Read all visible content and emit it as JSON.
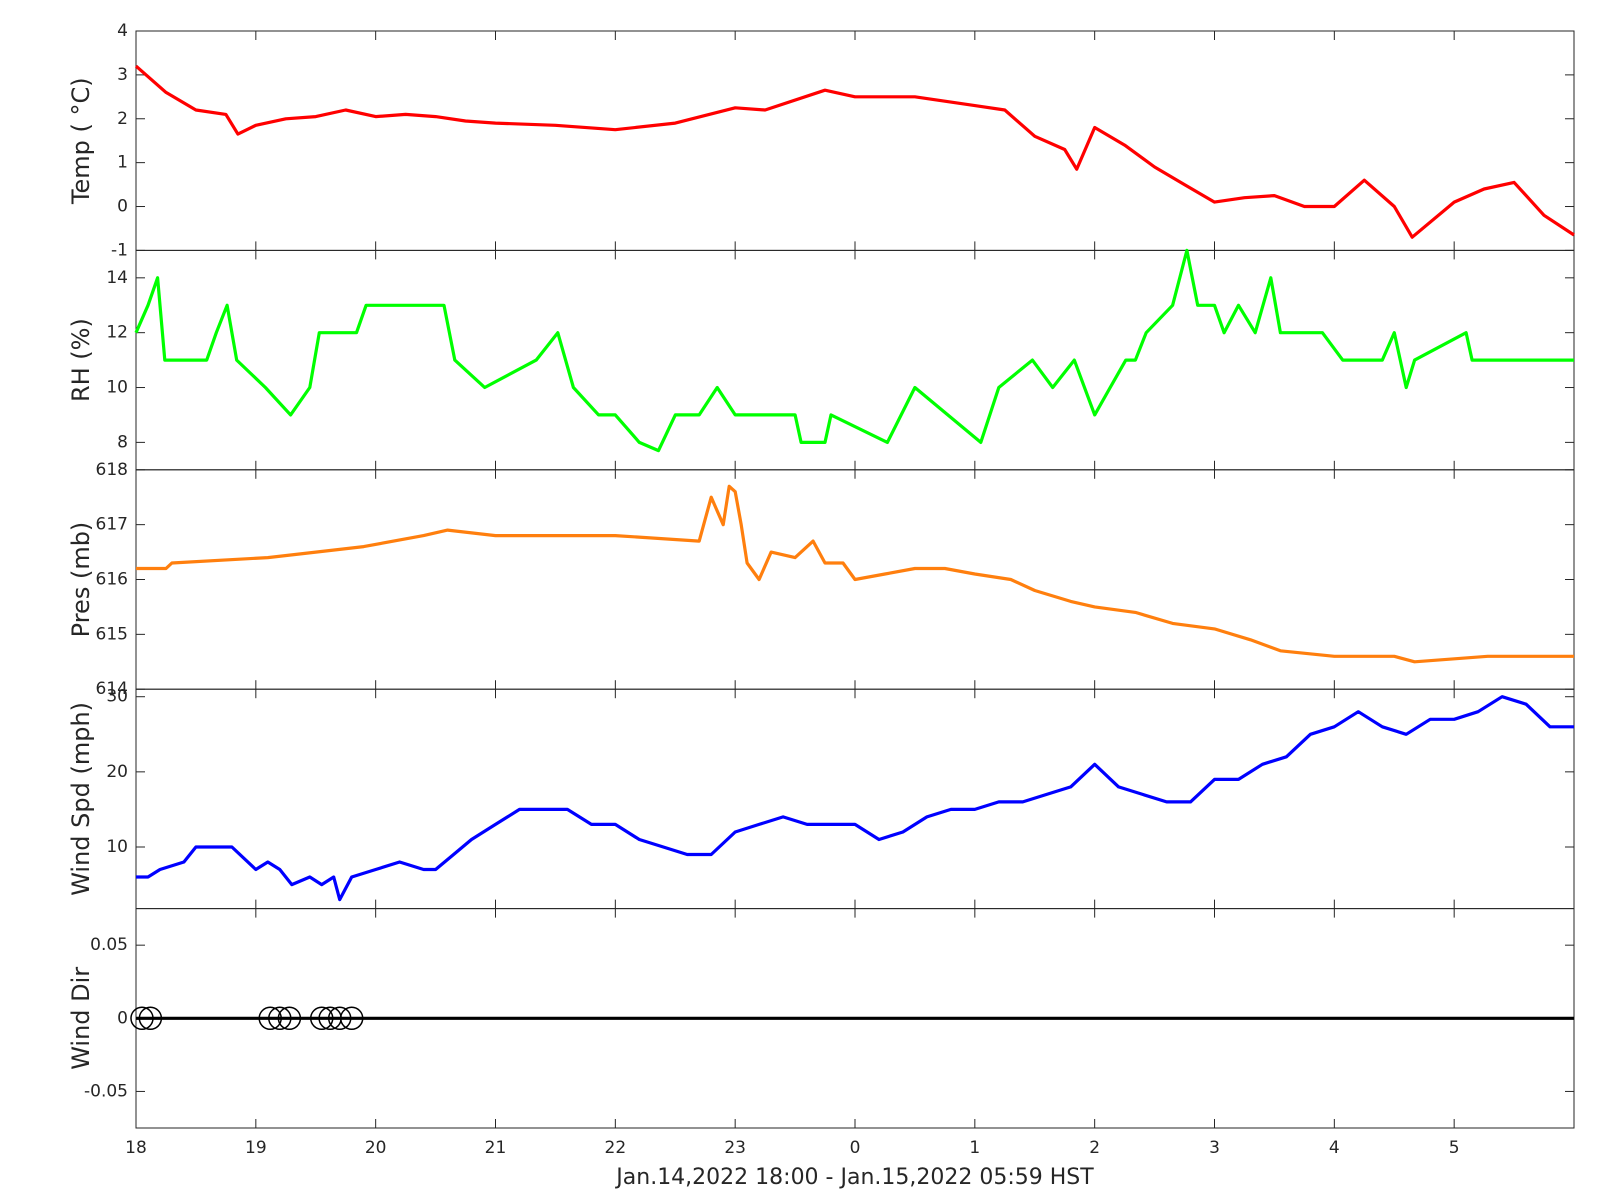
{
  "chart_data": [
    {
      "type": "line",
      "ylabel": "Temp ( °C)",
      "color": "#ff0000",
      "ylim": [
        -1,
        4
      ],
      "yticks": [
        -1,
        0,
        1,
        2,
        3,
        4
      ],
      "x": [
        0,
        0.25,
        0.5,
        0.75,
        0.85,
        1,
        1.25,
        1.5,
        1.75,
        2,
        2.25,
        2.5,
        2.75,
        3,
        3.5,
        4,
        4.5,
        5,
        5.25,
        5.75,
        6,
        6.5,
        7,
        7.25,
        7.5,
        7.75,
        7.85,
        8,
        8.25,
        8.5,
        8.75,
        9,
        9.25,
        9.5,
        9.75,
        10,
        10.25,
        10.5,
        10.65,
        11,
        11.25,
        11.5,
        11.75,
        12
      ],
      "values": [
        3.2,
        2.6,
        2.2,
        2.1,
        1.65,
        1.85,
        2.0,
        2.05,
        2.2,
        2.05,
        2.1,
        2.05,
        1.95,
        1.9,
        1.85,
        1.75,
        1.9,
        2.25,
        2.2,
        2.65,
        2.5,
        2.5,
        2.3,
        2.2,
        1.6,
        1.3,
        0.85,
        1.8,
        1.4,
        0.9,
        0.5,
        0.1,
        0.2,
        0.25,
        0.0,
        0.0,
        0.6,
        0.0,
        -0.7,
        0.1,
        0.4,
        0.55,
        -0.2,
        -0.65
      ]
    },
    {
      "type": "line",
      "ylabel": "RH (%)",
      "color": "#00ff00",
      "ylim": [
        7,
        15
      ],
      "yticks": [
        8,
        10,
        12,
        14
      ],
      "x": [
        0,
        0.1,
        0.18,
        0.24,
        0.59,
        0.67,
        0.76,
        0.84,
        1.08,
        1.29,
        1.45,
        1.53,
        1.84,
        1.92,
        2.57,
        2.66,
        2.91,
        3.34,
        3.52,
        3.65,
        3.86,
        4.0,
        4.2,
        4.36,
        4.5,
        4.7,
        4.85,
        5.0,
        5.5,
        5.55,
        5.75,
        5.8,
        6.27,
        6.5,
        7.05,
        7.2,
        7.48,
        7.65,
        7.83,
        8.0,
        8.13,
        8.26,
        8.34,
        8.43,
        8.65,
        8.77,
        8.86,
        9.0,
        9.08,
        9.2,
        9.34,
        9.47,
        9.55,
        9.9,
        10.07,
        10.4,
        10.5,
        10.6,
        10.67,
        11.1,
        11.15,
        12
      ],
      "values": [
        12,
        13,
        14,
        11,
        11,
        12,
        13,
        11,
        10,
        9,
        10,
        12,
        12,
        13,
        13,
        11,
        10,
        11,
        12,
        10,
        9,
        9,
        8,
        7.7,
        9,
        9,
        10,
        9,
        9,
        8,
        8,
        9,
        8,
        10,
        8,
        10,
        11,
        10,
        11,
        9,
        10,
        11,
        11,
        12,
        13,
        15,
        13,
        13,
        12,
        13,
        12,
        14,
        12,
        12,
        11,
        11,
        12,
        10,
        11,
        12,
        11,
        11
      ]
    },
    {
      "type": "line",
      "ylabel": "Pres (mb)",
      "color": "#ff7f0e",
      "ylim": [
        614,
        618
      ],
      "yticks": [
        614,
        615,
        616,
        617,
        618
      ],
      "x": [
        0,
        0.25,
        0.3,
        1.1,
        1.5,
        1.9,
        2.4,
        2.6,
        3.0,
        3.5,
        4.0,
        4.7,
        4.8,
        4.9,
        4.95,
        5.0,
        5.05,
        5.1,
        5.2,
        5.3,
        5.5,
        5.65,
        5.75,
        5.9,
        6.0,
        6.25,
        6.5,
        6.75,
        7.0,
        7.3,
        7.5,
        7.8,
        8.0,
        8.34,
        8.65,
        9.0,
        9.3,
        9.55,
        10.0,
        10.5,
        10.67,
        11.28,
        12
      ],
      "values": [
        616.2,
        616.2,
        616.3,
        616.4,
        616.5,
        616.6,
        616.8,
        616.9,
        616.8,
        616.8,
        616.8,
        616.7,
        617.5,
        617.0,
        617.7,
        617.6,
        617.0,
        616.3,
        616.0,
        616.5,
        616.4,
        616.7,
        616.3,
        616.3,
        616.0,
        616.1,
        616.2,
        616.2,
        616.1,
        616.0,
        615.8,
        615.6,
        615.5,
        615.4,
        615.2,
        615.1,
        614.9,
        614.7,
        614.6,
        614.6,
        614.5,
        614.6,
        614.6
      ]
    },
    {
      "type": "line",
      "ylabel": "Wind Spd (mph)",
      "color": "#0000ff",
      "ylim": [
        1.8,
        31
      ],
      "yticks": [
        10,
        20,
        30
      ],
      "x": [
        0,
        0.1,
        0.2,
        0.4,
        0.5,
        0.7,
        0.8,
        1.0,
        1.1,
        1.2,
        1.3,
        1.45,
        1.55,
        1.65,
        1.7,
        1.8,
        2.0,
        2.2,
        2.4,
        2.5,
        2.65,
        2.8,
        3.0,
        3.1,
        3.2,
        3.4,
        3.6,
        3.8,
        4.0,
        4.2,
        4.4,
        4.6,
        4.8,
        5.0,
        5.2,
        5.4,
        5.6,
        5.8,
        6.0,
        6.2,
        6.4,
        6.6,
        6.8,
        7.0,
        7.2,
        7.4,
        7.6,
        7.8,
        8.0,
        8.2,
        8.4,
        8.6,
        8.8,
        9.0,
        9.2,
        9.4,
        9.6,
        9.8,
        10.0,
        10.2,
        10.4,
        10.6,
        10.8,
        11.0,
        11.2,
        11.4,
        11.6,
        11.8,
        12
      ],
      "values": [
        6,
        6,
        7,
        8,
        10,
        10,
        10,
        7,
        8,
        7,
        5,
        6,
        5,
        6,
        3,
        6,
        7,
        8,
        7,
        7,
        9,
        11,
        13,
        14,
        15,
        15,
        15,
        13,
        13,
        11,
        10,
        9,
        9,
        12,
        13,
        14,
        13,
        13,
        13,
        11,
        12,
        14,
        15,
        15,
        16,
        16,
        17,
        18,
        21,
        18,
        17,
        16,
        16,
        19,
        19,
        21,
        22,
        25,
        26,
        28,
        26,
        25,
        27,
        27,
        28,
        30,
        29,
        26,
        26
      ]
    },
    {
      "type": "scatter",
      "ylabel": "Wind Dir",
      "ylim": [
        -0.075,
        0.075
      ],
      "yticks": [
        -0.05,
        0,
        0.05
      ],
      "series": [
        {
          "marker": "circle",
          "color": "#000000",
          "x": [
            0.05,
            0.12,
            1.12,
            1.2,
            1.28,
            1.55,
            1.62,
            1.7,
            1.8
          ],
          "values": [
            0,
            0,
            0,
            0,
            0,
            0,
            0,
            0,
            0
          ]
        },
        {
          "marker": "line",
          "color": "#000000",
          "x": [
            0,
            12
          ],
          "values": [
            0,
            0
          ]
        }
      ],
      "xlim": [
        0,
        12
      ],
      "xlabel": "Jan.14,2022 18:00 - Jan.15,2022 05:59 HST",
      "xticks": [
        {
          "value": 0,
          "label": "18"
        },
        {
          "value": 1,
          "label": "19"
        },
        {
          "value": 2,
          "label": "20"
        },
        {
          "value": 3,
          "label": "21"
        },
        {
          "value": 4,
          "label": "22"
        },
        {
          "value": 5,
          "label": "23"
        },
        {
          "value": 6,
          "label": "0"
        },
        {
          "value": 7,
          "label": "1"
        },
        {
          "value": 8,
          "label": "2"
        },
        {
          "value": 9,
          "label": "3"
        },
        {
          "value": 10,
          "label": "4"
        },
        {
          "value": 11,
          "label": "5"
        }
      ]
    }
  ]
}
